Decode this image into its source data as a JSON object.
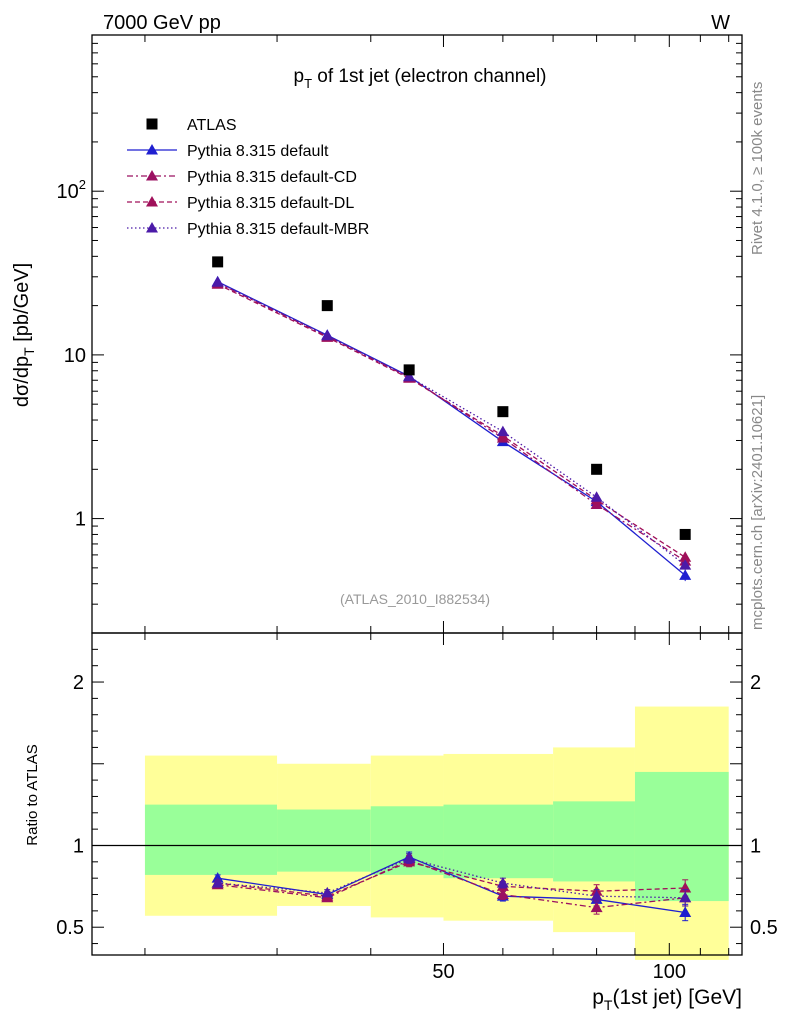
{
  "header": {
    "left": "7000 GeV pp",
    "right": "W"
  },
  "side_text": {
    "rivet": "Rivet 4.1.0, ≥ 100k events",
    "mcplots": "mcplots.cern.ch [arXiv:2401.10621]"
  },
  "colors": {
    "data": "#000000",
    "default": "#1f1fd0",
    "cd": "#9b1062",
    "dl": "#a0105a",
    "mbr": "#4b1aa8",
    "band_inner": "#99ff99",
    "band_outer": "#ffff99"
  },
  "chart_data": [
    {
      "type": "line",
      "title_main": "p",
      "title_sub": "T",
      "title_rest": " of 1st jet (electron channel)",
      "ylabel_main": "dσ/dp",
      "ylabel_sub": "T",
      "ylabel_rest": " [pb/GeV]",
      "analysis_tag": "(ATLAS_2010_I882534)",
      "yscale": "log",
      "xlim": [
        17,
        125
      ],
      "ylim": [
        0.2,
        900
      ],
      "ytick_labels": [
        {
          "v": 1,
          "label": "1"
        },
        {
          "v": 10,
          "label": "10"
        },
        {
          "v": 100,
          "label": "10",
          "sup": "2"
        }
      ],
      "x": [
        25,
        35,
        45,
        60,
        80,
        105
      ],
      "data": {
        "name": "ATLAS",
        "values": [
          37,
          20,
          8.1,
          4.5,
          2.0,
          0.8
        ]
      },
      "series": [
        {
          "name": "Pythia 8.315 default",
          "key": "default",
          "dash": "",
          "values": [
            28,
            13.2,
            7.4,
            2.95,
            1.27,
            0.45
          ],
          "errors": [
            0.5,
            0.3,
            0.15,
            0.08,
            0.05,
            0.035
          ]
        },
        {
          "name": "Pythia 8.315 default-CD",
          "key": "cd",
          "dash": "6,3,2,3",
          "values": [
            27.5,
            13.0,
            7.3,
            3.1,
            1.22,
            0.55
          ],
          "errors": [
            0.5,
            0.3,
            0.15,
            0.08,
            0.05,
            0.035
          ]
        },
        {
          "name": "Pythia 8.315 default-DL",
          "key": "dl",
          "dash": "5,3",
          "values": [
            27.0,
            12.8,
            7.2,
            3.2,
            1.3,
            0.58
          ],
          "errors": [
            0.5,
            0.3,
            0.15,
            0.08,
            0.05,
            0.035
          ]
        },
        {
          "name": "Pythia 8.315 default-MBR",
          "key": "mbr",
          "dash": "1.5,2.5",
          "values": [
            27.8,
            13.1,
            7.35,
            3.4,
            1.35,
            0.52
          ],
          "errors": [
            0.5,
            0.3,
            0.15,
            0.08,
            0.05,
            0.035
          ]
        }
      ]
    },
    {
      "type": "line",
      "ylabel": "Ratio to ATLAS",
      "xlabel_main": "p",
      "xlabel_sub": "T",
      "xlabel_rest": "(1st jet) [GeV]",
      "xlim": [
        17,
        125
      ],
      "ylim": [
        0.33,
        2.3
      ],
      "ytick_labels": [
        {
          "v": 0.5,
          "label": "0.5"
        },
        {
          "v": 1,
          "label": "1"
        },
        {
          "v": 2,
          "label": "2"
        }
      ],
      "xtick_labels": [
        {
          "v": 50,
          "label": "50"
        },
        {
          "v": 100,
          "label": "100"
        }
      ],
      "bands": [
        {
          "x0": 20,
          "x1": 30,
          "inner_lo": 0.82,
          "inner_hi": 1.25,
          "outer_lo": 0.57,
          "outer_hi": 1.55
        },
        {
          "x0": 30,
          "x1": 40,
          "inner_lo": 0.84,
          "inner_hi": 1.22,
          "outer_lo": 0.63,
          "outer_hi": 1.5
        },
        {
          "x0": 40,
          "x1": 50,
          "inner_lo": 0.82,
          "inner_hi": 1.24,
          "outer_lo": 0.56,
          "outer_hi": 1.55
        },
        {
          "x0": 50,
          "x1": 70,
          "inner_lo": 0.8,
          "inner_hi": 1.25,
          "outer_lo": 0.54,
          "outer_hi": 1.56
        },
        {
          "x0": 70,
          "x1": 90,
          "inner_lo": 0.78,
          "inner_hi": 1.27,
          "outer_lo": 0.47,
          "outer_hi": 1.6
        },
        {
          "x0": 90,
          "x1": 120,
          "inner_lo": 0.66,
          "inner_hi": 1.45,
          "outer_lo": 0.3,
          "outer_hi": 1.85
        }
      ],
      "series": [
        {
          "key": "default",
          "dash": "",
          "values": [
            0.8,
            0.7,
            0.93,
            0.69,
            0.67,
            0.59
          ],
          "errors": [
            0.02,
            0.02,
            0.03,
            0.03,
            0.04,
            0.05
          ]
        },
        {
          "key": "cd",
          "dash": "6,3,2,3",
          "values": [
            0.76,
            0.68,
            0.91,
            0.7,
            0.62,
            0.68
          ],
          "errors": [
            0.02,
            0.02,
            0.03,
            0.03,
            0.04,
            0.05
          ]
        },
        {
          "key": "dl",
          "dash": "5,3",
          "values": [
            0.77,
            0.69,
            0.9,
            0.75,
            0.72,
            0.74
          ],
          "errors": [
            0.02,
            0.02,
            0.03,
            0.03,
            0.04,
            0.05
          ]
        },
        {
          "key": "mbr",
          "dash": "1.5,2.5",
          "values": [
            0.77,
            0.71,
            0.92,
            0.77,
            0.69,
            0.68
          ],
          "errors": [
            0.02,
            0.02,
            0.03,
            0.03,
            0.04,
            0.05
          ]
        }
      ]
    }
  ]
}
